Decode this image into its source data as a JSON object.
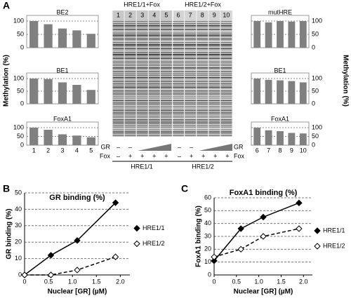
{
  "panels": [
    "A",
    "B",
    "C"
  ],
  "gel": {
    "headers": [
      "HRE1/1+Fox",
      "HRE1/2+Fox"
    ],
    "lanes": [
      "1",
      "2",
      "3",
      "4",
      "5",
      "6",
      "7",
      "8",
      "9",
      "10"
    ],
    "row_labels": [
      "GR",
      "Fox"
    ],
    "gr_marks": [
      [
        "–",
        "–"
      ],
      [
        "–",
        "–"
      ]
    ],
    "fox_marks": [
      [
        "–",
        "+",
        "+",
        "+",
        "+"
      ],
      [
        "–",
        "+",
        "+",
        "+",
        "+"
      ]
    ],
    "constructs": [
      "HRE1/1",
      "HRE1/2"
    ]
  },
  "methylation_label": "Methylation (%)",
  "chart_data": [
    {
      "type": "bar",
      "title": "BE2",
      "values": [
        100,
        88,
        72,
        65,
        52
      ],
      "color": "#808080",
      "ylim": [
        0,
        100
      ],
      "yticks": [
        0,
        50,
        100
      ],
      "axis_side": "left"
    },
    {
      "type": "bar",
      "title": "BE1",
      "values": [
        100,
        98,
        85,
        75,
        55
      ],
      "color": "#808080",
      "ylim": [
        0,
        100
      ],
      "yticks": [
        0,
        50,
        100
      ],
      "axis_side": "left"
    },
    {
      "type": "bar",
      "title": "FoxA1",
      "categories": [
        "1",
        "2",
        "3",
        "4",
        "5"
      ],
      "values": [
        100,
        88,
        62,
        55,
        45
      ],
      "color": "#808080",
      "ylim": [
        0,
        100
      ],
      "yticks": [
        0,
        50,
        100
      ],
      "axis_side": "left"
    },
    {
      "type": "bar",
      "title": "mutHRE",
      "values": [
        100,
        95,
        100,
        98,
        100
      ],
      "color": "#808080",
      "ylim": [
        0,
        100
      ],
      "yticks": [
        0,
        50,
        100
      ],
      "axis_side": "right"
    },
    {
      "type": "bar",
      "title": "BE1",
      "values": [
        100,
        95,
        93,
        90,
        85
      ],
      "color": "#808080",
      "ylim": [
        0,
        100
      ],
      "yticks": [
        0,
        50,
        100
      ],
      "axis_side": "right"
    },
    {
      "type": "bar",
      "title": "FoxA1",
      "categories": [
        "6",
        "7",
        "8",
        "9",
        "10"
      ],
      "values": [
        100,
        85,
        80,
        70,
        67
      ],
      "color": "#808080",
      "ylim": [
        0,
        100
      ],
      "yticks": [
        0,
        50,
        100
      ],
      "axis_side": "right"
    },
    {
      "type": "line",
      "title": "GR binding (%)",
      "x_label": "Nuclear [GR] (µM)",
      "y_label": "GR binding (%)",
      "x": [
        0,
        0.55,
        1.1,
        1.9
      ],
      "series": [
        {
          "name": "HRE1/1",
          "color": "#000000",
          "marker": "filled",
          "dashed": false,
          "values": [
            0,
            12,
            21,
            44
          ]
        },
        {
          "name": "HRE1/2",
          "color": "#000000",
          "marker": "open",
          "dashed": true,
          "values": [
            0,
            0,
            3,
            11
          ]
        }
      ],
      "xlim": [
        0,
        2.2
      ],
      "xticks": [
        0,
        0.5,
        {
          "value": 1,
          "label": "1.0"
        },
        1.5,
        {
          "value": 2,
          "label": "2.0"
        }
      ],
      "ylim": [
        0,
        50
      ],
      "yticks": [
        0,
        10,
        20,
        30,
        40,
        50
      ],
      "grid": true
    },
    {
      "type": "line",
      "title": "FoxA1 binding (%)",
      "x_label": "Nuclear [GR] (µM)",
      "y_label": "FoxA1 binding (%)",
      "x": [
        0,
        0.6,
        1.1,
        1.9
      ],
      "series": [
        {
          "name": "HRE1/1",
          "color": "#000000",
          "marker": "filled",
          "dashed": false,
          "values": [
            11,
            36,
            45,
            56
          ]
        },
        {
          "name": "HRE1/2",
          "color": "#000000",
          "marker": "open",
          "dashed": true,
          "values": [
            14,
            20,
            30,
            36
          ]
        }
      ],
      "xlim": [
        0,
        2.2
      ],
      "xticks": [
        0,
        0.5,
        {
          "value": 1,
          "label": "1.0"
        },
        1.5,
        {
          "value": 2,
          "label": "2.0"
        }
      ],
      "ylim": [
        0,
        60
      ],
      "yticks": [
        0,
        10,
        20,
        30,
        40,
        50,
        60
      ],
      "grid": true
    }
  ]
}
